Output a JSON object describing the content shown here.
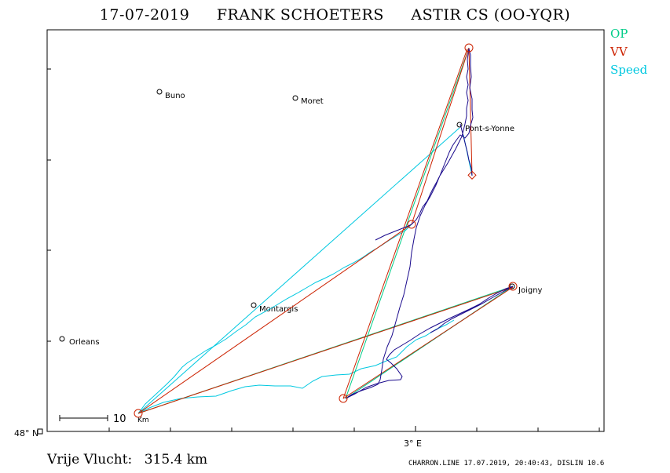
{
  "header": {
    "date": "17-07-2019",
    "pilot": "FRANK SCHOETERS",
    "glider": "ASTIR CS (OO-YQR)"
  },
  "legend": {
    "items": [
      {
        "label": "OP",
        "color": "#00cc88"
      },
      {
        "label": "VV",
        "color": "#cc2200"
      },
      {
        "label": "Speed",
        "color": "#00c8e0"
      }
    ]
  },
  "axes": {
    "y_label": "48° N",
    "x_label": "3° E"
  },
  "scale": {
    "label": "10",
    "unit": "Km"
  },
  "places": [
    {
      "name": "Buno"
    },
    {
      "name": "Moret"
    },
    {
      "name": "Pont-s-Yonne"
    },
    {
      "name": "Montargis"
    },
    {
      "name": "Orleans"
    },
    {
      "name": "Joigny"
    }
  ],
  "colors": {
    "track": "#1a0a8c",
    "op_line": "#00cc88",
    "vv_line": "#cc2200",
    "speed_line": "#00c8e0"
  },
  "footer": {
    "distance_label": "Vrije Vlucht:",
    "distance_value": "315.4 km",
    "software": "CHARRON.LINE 17.07.2019, 20:40:43, DISLIN 10.6"
  }
}
